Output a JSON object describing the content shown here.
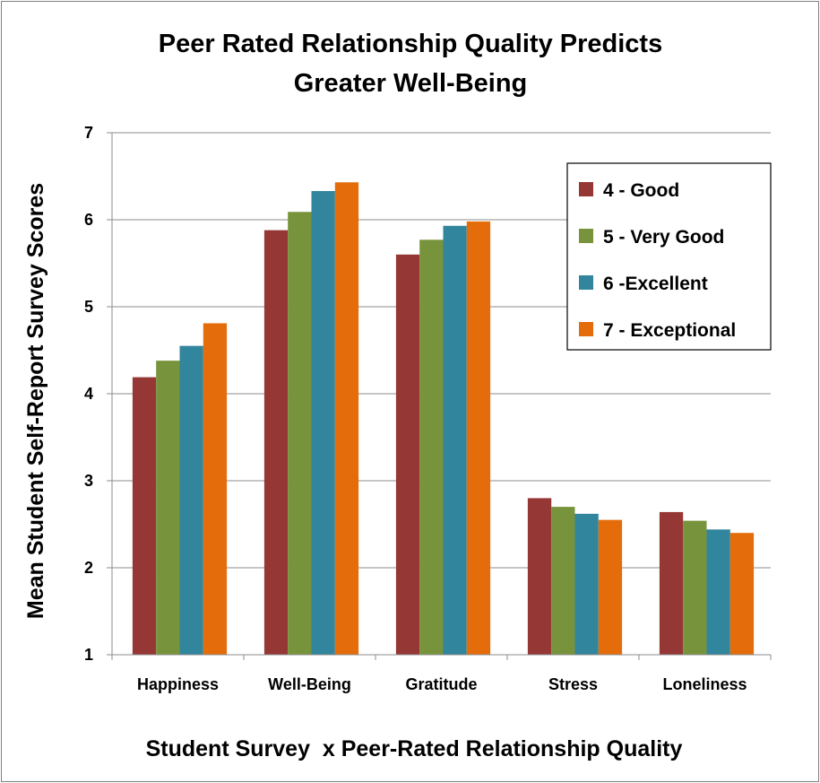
{
  "chart_data": {
    "type": "bar",
    "title": [
      "Peer Rated Relationship Quality Predicts",
      "Greater Well-Being"
    ],
    "xlabel": "Student Survey  x Peer-Rated Relationship Quality",
    "ylabel": "Mean Student Self-Report Survey Scores",
    "ylim": [
      1,
      7
    ],
    "yticks": [
      "1",
      "2",
      "3",
      "4",
      "5",
      "6",
      "7"
    ],
    "grid": true,
    "legend_position": "top-right",
    "categories": [
      "Happiness",
      "Well-Being",
      "Gratitude",
      "Stress",
      "Loneliness"
    ],
    "series": [
      {
        "name": "4 - Good",
        "color": "#953735",
        "values": [
          4.19,
          5.88,
          5.6,
          2.8,
          2.64
        ]
      },
      {
        "name": "5 - Very Good",
        "color": "#77933C",
        "values": [
          4.38,
          6.09,
          5.77,
          2.7,
          2.54
        ]
      },
      {
        "name": "6 -Excellent",
        "color": "#31859C",
        "values": [
          4.55,
          6.33,
          5.93,
          2.62,
          2.44
        ]
      },
      {
        "name": "7 - Exceptional",
        "color": "#E46C0A",
        "values": [
          4.81,
          6.43,
          5.98,
          2.55,
          2.4
        ]
      }
    ]
  }
}
